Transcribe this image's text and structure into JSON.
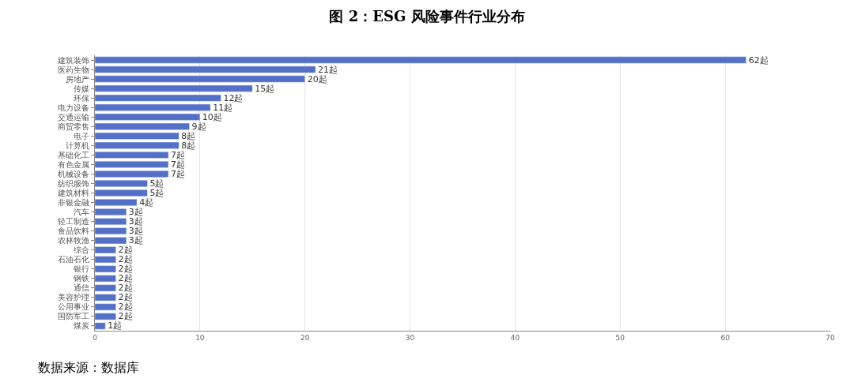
{
  "chart_data": {
    "type": "bar",
    "orientation": "horizontal",
    "title": "图 2：ESG 风险事件行业分布",
    "categories": [
      "建筑装饰",
      "医药生物",
      "房地产",
      "传媒",
      "环保",
      "电力设备",
      "交通运输",
      "商贸零售",
      "电子",
      "计算机",
      "基础化工",
      "有色金属",
      "机械设备",
      "纺织服饰",
      "建筑材料",
      "非银金融",
      "汽车",
      "轻工制造",
      "食品饮料",
      "农林牧渔",
      "综合",
      "石油石化",
      "银行",
      "钢铁",
      "通信",
      "美容护理",
      "公用事业",
      "国防军工",
      "煤炭"
    ],
    "values": [
      62,
      21,
      20,
      15,
      12,
      11,
      10,
      9,
      8,
      8,
      7,
      7,
      7,
      5,
      5,
      4,
      3,
      3,
      3,
      3,
      2,
      2,
      2,
      2,
      2,
      2,
      2,
      2,
      1
    ],
    "value_labels": [
      "62起",
      "21起",
      "20起",
      "15起",
      "12起",
      "11起",
      "10起",
      "9起",
      "8起",
      "8起",
      "7起",
      "7起",
      "7起",
      "5起",
      "5起",
      "4起",
      "3起",
      "3起",
      "3起",
      "3起",
      "2起",
      "2起",
      "2起",
      "2起",
      "2起",
      "2起",
      "2起",
      "2起",
      "1起"
    ],
    "color": "#5470c6",
    "xlim": [
      0,
      70
    ],
    "xticks": [
      0,
      10,
      20,
      30,
      40,
      50,
      60,
      70
    ],
    "grid": "x",
    "annotations": [
      "数据来源：数据库"
    ]
  }
}
